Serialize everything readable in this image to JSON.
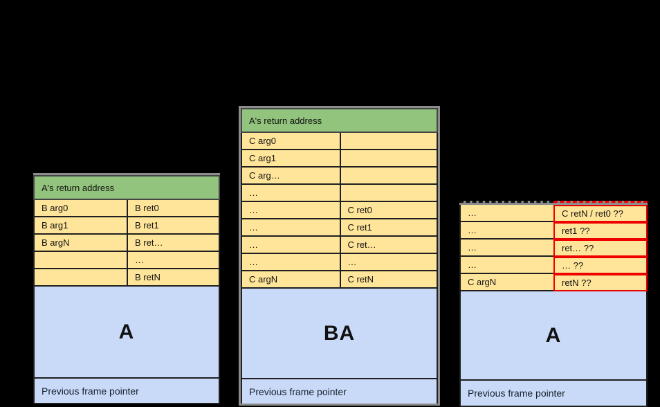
{
  "colors": {
    "green": "#93c47d",
    "yellow": "#ffe599",
    "blue": "#c9daf8",
    "red": "#ee0000",
    "gray": "#8c8c8c",
    "dark": "#1f1f1f",
    "background": "#000000",
    "text": "#111111"
  },
  "frames": {
    "left": {
      "header": "A's return address",
      "rows": [
        [
          "B arg0",
          "B ret0"
        ],
        [
          "B arg1",
          "B ret1"
        ],
        [
          "B argN",
          "B ret…"
        ],
        [
          "",
          "…"
        ],
        [
          "",
          "B retN"
        ]
      ],
      "label": "A",
      "footer": "Previous frame pointer"
    },
    "middle": {
      "header": "A's return address",
      "rows": [
        [
          "C arg0",
          ""
        ],
        [
          "C arg1",
          ""
        ],
        [
          "C arg…",
          ""
        ],
        [
          "…",
          ""
        ],
        [
          "…",
          "C ret0"
        ],
        [
          "…",
          "C ret1"
        ],
        [
          "…",
          "C ret…"
        ],
        [
          "…",
          "…"
        ],
        [
          "C argN",
          "C retN"
        ]
      ],
      "label": "BA",
      "footer": "Previous frame pointer"
    },
    "right": {
      "rows": [
        [
          "…",
          "C retN / ret0 ??"
        ],
        [
          "…",
          "ret1 ??"
        ],
        [
          "…",
          "ret… ??"
        ],
        [
          "…",
          "… ??"
        ],
        [
          "C argN",
          "retN ??"
        ]
      ],
      "label": "A",
      "footer": "Previous frame pointer"
    }
  }
}
